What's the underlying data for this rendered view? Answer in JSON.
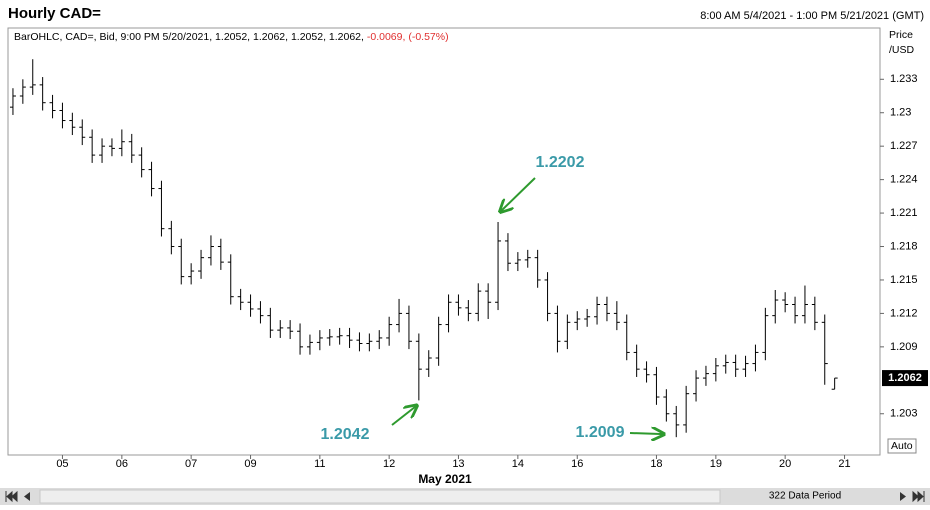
{
  "chart_data": {
    "type": "ohlc",
    "title": "Hourly CAD=",
    "date_range": "8:00 AM 5/4/2021 - 1:00 PM 5/21/2021 (GMT)",
    "info": "BarOHLC, CAD=, Bid, 9:00 PM 5/20/2021, 1.2052, 1.2062, 1.2052, 1.2062,",
    "change": "-0.0069, (-0.57%)",
    "y_axis_label": [
      "Price",
      "/USD"
    ],
    "x_axis_label": "May 2021",
    "auto_button": "Auto",
    "data_period": "322 Data Period",
    "color": "#000000",
    "categories": [
      null,
      null,
      null,
      null,
      null,
      "05",
      null,
      null,
      null,
      null,
      null,
      "06",
      null,
      null,
      null,
      null,
      null,
      null,
      "07",
      null,
      null,
      null,
      null,
      null,
      "09",
      null,
      null,
      null,
      null,
      null,
      null,
      "11",
      null,
      null,
      null,
      null,
      null,
      null,
      "12",
      null,
      null,
      null,
      null,
      null,
      null,
      "13",
      null,
      null,
      null,
      null,
      null,
      "14",
      null,
      null,
      null,
      null,
      null,
      "16",
      null,
      null,
      null,
      null,
      null,
      null,
      null,
      "18",
      null,
      null,
      null,
      null,
      null,
      "19",
      null,
      null,
      null,
      null,
      null,
      null,
      "20",
      null,
      null,
      null,
      null,
      null,
      "21"
    ],
    "open": [
      1.2305,
      1.2315,
      1.2323,
      1.2325,
      1.2309,
      1.2302,
      1.2293,
      1.2287,
      1.2278,
      1.2262,
      1.227,
      1.2268,
      1.2274,
      1.2262,
      1.2249,
      1.2232,
      1.2196,
      1.218,
      1.2153,
      1.2158,
      1.217,
      1.218,
      1.2166,
      1.2135,
      1.213,
      1.2124,
      1.2118,
      1.2105,
      1.2107,
      1.2104,
      1.209,
      1.2094,
      1.2098,
      1.2099,
      1.21,
      1.2096,
      1.2093,
      1.2095,
      1.2098,
      1.211,
      1.212,
      1.2095,
      1.207,
      1.208,
      1.211,
      1.213,
      1.2125,
      1.212,
      1.214,
      1.213,
      1.2185,
      1.2165,
      1.2168,
      1.217,
      1.215,
      1.212,
      1.2095,
      1.2112,
      1.2115,
      1.2117,
      1.2128,
      1.212,
      1.2112,
      1.2085,
      1.207,
      1.2065,
      1.2045,
      1.203,
      1.202,
      1.2048,
      1.2062,
      1.2066,
      1.2073,
      1.2076,
      1.207,
      1.2075,
      1.2085,
      1.2118,
      1.2132,
      1.2128,
      1.2118,
      1.2128,
      1.2112,
      1.2052,
      null
    ],
    "high": [
      1.2322,
      1.233,
      1.2348,
      1.2332,
      1.2316,
      1.2309,
      1.23,
      1.2294,
      1.2285,
      1.2277,
      1.2277,
      1.2285,
      1.2281,
      1.2269,
      1.2256,
      1.2239,
      1.2203,
      1.2187,
      1.2165,
      1.2177,
      1.219,
      1.2187,
      1.2173,
      1.2142,
      1.2137,
      1.2131,
      1.2125,
      1.2114,
      1.2114,
      1.2111,
      1.2101,
      1.2105,
      1.2106,
      1.2107,
      1.2107,
      1.2103,
      1.2102,
      1.2105,
      1.2117,
      1.2133,
      1.2127,
      1.2102,
      1.2087,
      1.2117,
      1.2137,
      1.2137,
      1.2132,
      1.2147,
      1.2147,
      1.2202,
      1.2192,
      1.2175,
      1.2177,
      1.2177,
      1.2157,
      1.2127,
      1.2119,
      1.2122,
      1.2124,
      1.2135,
      1.2135,
      1.2131,
      1.2119,
      1.2092,
      1.2077,
      1.2072,
      1.2052,
      1.2037,
      1.2055,
      1.2069,
      1.2073,
      1.208,
      1.2083,
      1.2083,
      1.2082,
      1.2092,
      1.2125,
      1.2141,
      1.2139,
      1.2135,
      1.2145,
      1.2135,
      1.2119,
      1.2062,
      null
    ],
    "low": [
      1.2298,
      1.2308,
      1.2316,
      1.2302,
      1.2295,
      1.2286,
      1.228,
      1.2271,
      1.2255,
      1.2255,
      1.2261,
      1.2261,
      1.2255,
      1.2242,
      1.2225,
      1.2189,
      1.2173,
      1.2146,
      1.2146,
      1.2151,
      1.2163,
      1.2159,
      1.2128,
      1.2123,
      1.2117,
      1.2111,
      1.2098,
      1.2098,
      1.2097,
      1.2083,
      1.2083,
      1.2087,
      1.2091,
      1.2092,
      1.2089,
      1.2086,
      1.2086,
      1.2088,
      1.2091,
      1.2103,
      1.2088,
      1.2042,
      1.2063,
      1.2073,
      1.2103,
      1.2118,
      1.2113,
      1.2113,
      1.2115,
      1.2123,
      1.2158,
      1.2158,
      1.2161,
      1.2143,
      1.2113,
      1.2085,
      1.2088,
      1.2105,
      1.2108,
      1.211,
      1.2113,
      1.2105,
      1.2078,
      1.2063,
      1.2058,
      1.2038,
      1.2023,
      1.2009,
      1.2013,
      1.2041,
      1.2055,
      1.2059,
      1.2066,
      1.2063,
      1.2063,
      1.2068,
      1.2078,
      1.2111,
      1.2121,
      1.2111,
      1.2111,
      1.2105,
      1.2056,
      1.2052,
      null
    ],
    "close": [
      1.2315,
      1.2323,
      1.2325,
      1.2309,
      1.2302,
      1.2293,
      1.2287,
      1.2278,
      1.2262,
      1.227,
      1.2268,
      1.2274,
      1.2262,
      1.2249,
      1.2232,
      1.2196,
      1.218,
      1.2153,
      1.2158,
      1.217,
      1.218,
      1.2166,
      1.2135,
      1.213,
      1.2124,
      1.2118,
      1.2105,
      1.2107,
      1.2104,
      1.209,
      1.2094,
      1.2098,
      1.2099,
      1.21,
      1.2096,
      1.2093,
      1.2095,
      1.2098,
      1.211,
      1.212,
      1.2095,
      1.207,
      1.208,
      1.211,
      1.213,
      1.2125,
      1.212,
      1.214,
      1.213,
      1.2185,
      1.2165,
      1.2168,
      1.217,
      1.215,
      1.212,
      1.2095,
      1.2112,
      1.2115,
      1.2117,
      1.2128,
      1.212,
      1.2112,
      1.2085,
      1.207,
      1.2065,
      1.2045,
      1.203,
      1.202,
      1.2048,
      1.2062,
      1.2066,
      1.2073,
      1.2076,
      1.207,
      1.2075,
      1.2085,
      1.2118,
      1.2132,
      1.2128,
      1.2118,
      1.2128,
      1.2112,
      1.2075,
      1.2062,
      null
    ],
    "ylim": [
      1.1993,
      1.2376
    ],
    "yticks": [
      1.233,
      1.23,
      1.227,
      1.224,
      1.221,
      1.218,
      1.215,
      1.212,
      1.209,
      1.203
    ],
    "last_price": 1.2062,
    "annotations": [
      {
        "value": 1.2202,
        "color": "#3a9aa8",
        "arrow_color": "#2e9a2e"
      },
      {
        "value": 1.2042,
        "color": "#3a9aa8",
        "arrow_color": "#2e9a2e"
      },
      {
        "value": 1.2009,
        "color": "#3a9aa8",
        "arrow_color": "#2e9a2e"
      }
    ]
  }
}
